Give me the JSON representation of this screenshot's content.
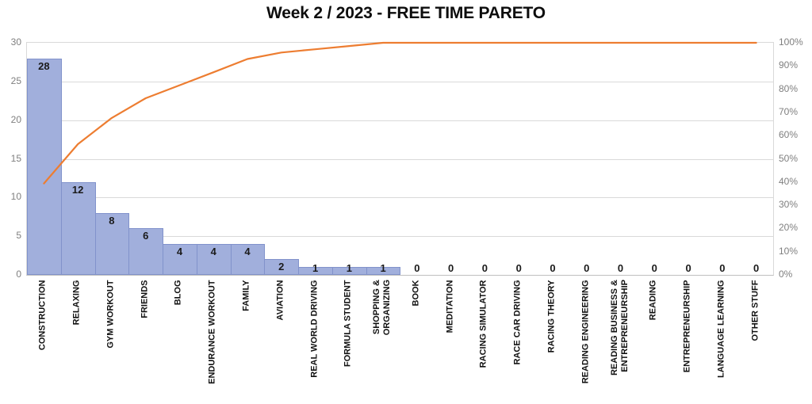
{
  "chart_data": {
    "type": "pareto",
    "title": "Week 2 / 2023 - FREE TIME PARETO",
    "categories": [
      "CONSTRUCTION",
      "RELAXING",
      "GYM WORKOUT",
      "FRIENDS",
      "BLOG",
      "ENDURANCE WORKOUT",
      "FAMILY",
      "AVIATION",
      "REAL WORLD DRIVING",
      "FORMULA STUDENT",
      "SHOPPING &\nORGANIZING",
      "BOOK",
      "MEDITATION",
      "RACING SIMULATOR",
      "RACE CAR DRIVING",
      "RACING THEORY",
      "READING ENGINEERING",
      "READING BUSINESS &\nENTREPRENEURSHIP",
      "READING",
      "ENTREPRENEURSHIP",
      "LANGUAGE LEARNING",
      "OTHER STUFF"
    ],
    "series": [
      {
        "name": "bar-values",
        "type": "bar",
        "values": [
          28,
          12,
          8,
          6,
          4,
          4,
          4,
          2,
          1,
          1,
          1,
          0,
          0,
          0,
          0,
          0,
          0,
          0,
          0,
          0,
          0,
          0
        ],
        "data_labels": [
          "28",
          "12",
          "8",
          "6",
          "4",
          "4",
          "4",
          "2",
          "1",
          "1",
          "1",
          "0",
          "0",
          "0",
          "0",
          "0",
          "0",
          "0",
          "0",
          "0",
          "0",
          "0"
        ],
        "color": "#a1afdc",
        "border_color": "#8192cb",
        "axis": "left"
      },
      {
        "name": "cumulative-percent",
        "type": "line",
        "values": [
          39.4,
          56.3,
          67.6,
          76.1,
          81.7,
          87.3,
          93.0,
          95.8,
          97.2,
          98.6,
          100,
          100,
          100,
          100,
          100,
          100,
          100,
          100,
          100,
          100,
          100,
          100
        ],
        "color": "#ed7d31",
        "axis": "right"
      }
    ],
    "left_axis": {
      "min": 0,
      "max": 30,
      "step": 5,
      "tick_labels": [
        "0",
        "5",
        "10",
        "15",
        "20",
        "25",
        "30"
      ]
    },
    "right_axis": {
      "min": 0,
      "max": 100,
      "step": 10,
      "tick_labels": [
        "0%",
        "10%",
        "20%",
        "30%",
        "40%",
        "50%",
        "60%",
        "70%",
        "80%",
        "90%",
        "100%"
      ]
    },
    "grid": true,
    "legend": "none",
    "colors": {
      "bar_fill": "#a1afdc",
      "bar_border": "#8192cb",
      "line": "#ed7d31",
      "gridline": "#d9d9d9",
      "tick_text": "#7f7f7f",
      "label_text": "#111111",
      "background": "#ffffff"
    }
  }
}
